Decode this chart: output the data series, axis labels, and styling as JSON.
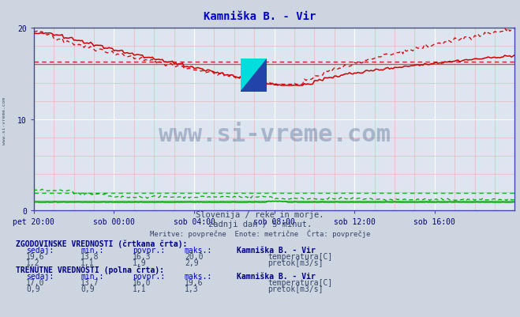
{
  "title": "Kamniška B. - Vir",
  "title_color": "#0000cc",
  "bg_color": "#ccd5e0",
  "plot_bg_color": "#dde5f0",
  "grid_major_color": "#ffffff",
  "grid_minor_color": "#e8b8b8",
  "grid_minor_h_color": "#e0c8c8",
  "axis_color": "#4444aa",
  "tick_color": "#000080",
  "x_labels": [
    "pet 20:00",
    "sob 00:00",
    "sob 04:00",
    "sob 08:00",
    "sob 12:00",
    "sob 16:00"
  ],
  "x_ticks": [
    0,
    48,
    96,
    144,
    192,
    240
  ],
  "ylim": [
    0,
    20
  ],
  "xlim": [
    0,
    288
  ],
  "subtitle1": "Slovenija / reke in morje.",
  "subtitle2": "zadnji dan / 5 minut.",
  "subtitle3": "Meritve: povprečne  Enote: metrične  Črta: povprečje",
  "watermark": "www.si-vreme.com",
  "watermark_color": "#1e3a6e",
  "hist_label": "ZGODOVINSKE VREDNOSTI (črtkana črta):",
  "curr_label": "TRENUTNE VREDNOSTI (polna črta):",
  "station_label": "Kamniška B. - Vir",
  "hist_temp_sedaj": "19,6",
  "hist_temp_min": "13,8",
  "hist_temp_povpr": "16,3",
  "hist_temp_maks": "20,0",
  "hist_flow_sedaj": "1,2",
  "hist_flow_min": "1,1",
  "hist_flow_povpr": "1,9",
  "hist_flow_maks": "2,9",
  "curr_temp_sedaj": "17,0",
  "curr_temp_min": "13,7",
  "curr_temp_povpr": "16,0",
  "curr_temp_maks": "19,6",
  "curr_flow_sedaj": "0,9",
  "curr_flow_min": "0,9",
  "curr_flow_povpr": "1,1",
  "curr_flow_maks": "1,3",
  "temp_color": "#cc0000",
  "flow_color": "#00aa00",
  "hist_avg_temp": 16.3,
  "hist_avg_flow": 1.9,
  "curr_avg_temp": 16.0,
  "curr_avg_flow": 1.1,
  "n_points": 289,
  "logo_yellow": "#ffdd00",
  "logo_cyan": "#00dddd",
  "logo_blue": "#2244aa"
}
